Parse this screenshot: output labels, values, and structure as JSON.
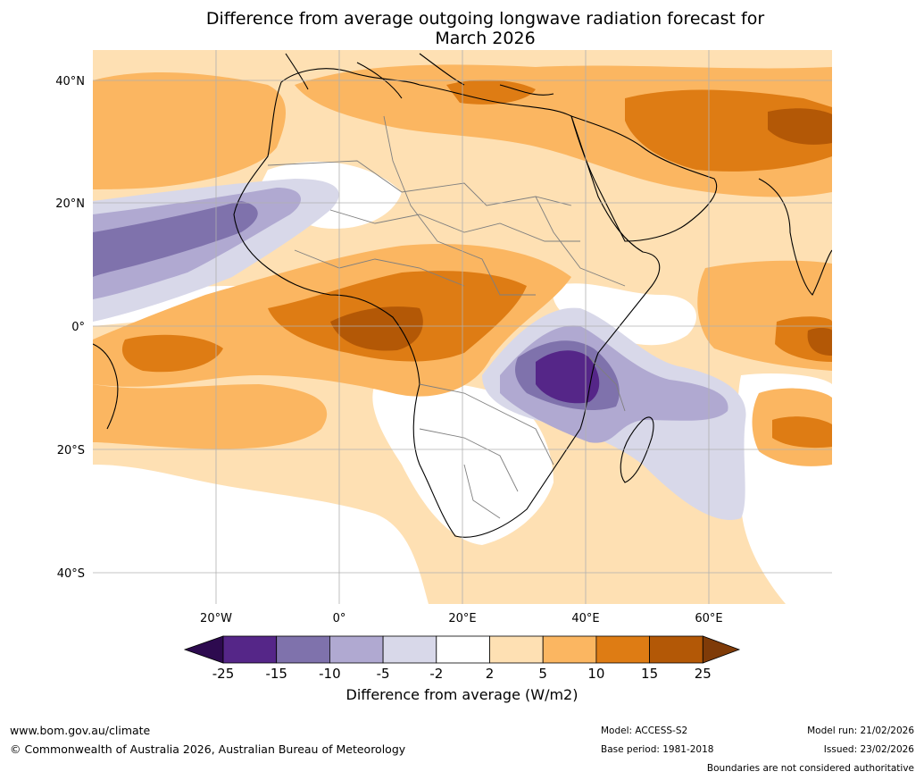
{
  "title_line1": "Difference from average outgoing longwave radiation forecast for",
  "title_line2": "March 2026",
  "axes": {
    "lat_labels": [
      "40°N",
      "20°N",
      "0°",
      "20°S",
      "40°S"
    ],
    "lon_labels": [
      "20°W",
      "0°",
      "20°E",
      "40°E",
      "60°E"
    ]
  },
  "colorbar": {
    "title": "Difference from average (W/m2)",
    "tick_labels": [
      "-25",
      "-15",
      "-10",
      "-5",
      "-2",
      "2",
      "5",
      "10",
      "15",
      "25"
    ],
    "colors": {
      "below_min": "#2d0a4f",
      "bins": [
        "#552688",
        "#7f72ac",
        "#b0a9d1",
        "#d8d8e9",
        "#ffffff",
        "#fee0b3",
        "#fbb661",
        "#de7c14",
        "#b35806"
      ],
      "above_max": "#7f3b08"
    }
  },
  "footer": {
    "website": "www.bom.gov.au/climate",
    "copyright": "© Commonwealth of Australia 2026, Australian Bureau of Meteorology",
    "model": "Model: ACCESS-S2",
    "base_period": "Base period: 1981-2018",
    "model_run": "Model run: 21/02/2026",
    "issued": "Issued: 23/02/2026",
    "disclaimer": "Boundaries are not considered authoritative"
  }
}
